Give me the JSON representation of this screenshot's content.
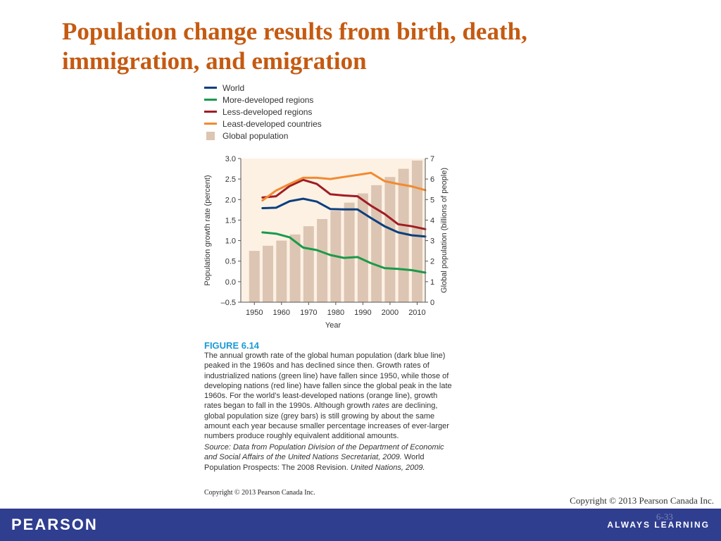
{
  "slide": {
    "title": "Population change results from birth, death, immigration, and emigration",
    "slide_number": "6-33",
    "copyright_right": "Copyright © 2013 Pearson Canada Inc.",
    "copyright_figure": "Copyright © 2013 Pearson Canada Inc."
  },
  "footer": {
    "logo": "PEARSON",
    "tagline": "ALWAYS LEARNING",
    "background_color": "#2f3e8f"
  },
  "legend": {
    "items": [
      {
        "label": "World",
        "color": "#0c3f7e",
        "kind": "line"
      },
      {
        "label": "More-developed regions",
        "color": "#1a9a4a",
        "kind": "line"
      },
      {
        "label": "Less-developed regions",
        "color": "#a01c24",
        "kind": "line"
      },
      {
        "label": "Least-developed countries",
        "color": "#f28a30",
        "kind": "line"
      },
      {
        "label": "Global population",
        "color": "#dcc5b2",
        "kind": "box"
      }
    ]
  },
  "figure": {
    "label": "FIGURE 6.14",
    "caption_pre": "The annual growth rate of the global human population (dark blue line) peaked in the 1960s and has declined since then. Growth rates of industrialized nations (green line) have fallen since 1950, while those of developing nations (red line) have fallen since the global peak in the late 1960s. For the world’s least-developed nations (orange line), growth rates began to fall in the 1990s. Although growth ",
    "caption_em": "rates",
    "caption_post": " are declining, global population size (grey bars) is still growing by about the same amount each year because smaller percentage increases of ever-larger numbers produce roughly equivalent additional amounts.",
    "source_italic": "Source: Data from Population Division of the Department of Economic and Social Affairs of the United Nations Secretariat, 2009.",
    "source_plain": " World Population Prospects: The 2008 Revision.",
    "source_italic2": " United Nations, 2009."
  },
  "chart_data": {
    "type": "line",
    "title": "",
    "xlabel": "Year",
    "ylabel": "Population growth rate (percent)",
    "y2label": "Global population (billions of people)",
    "xlim": [
      1945,
      2013
    ],
    "ylim": [
      -0.5,
      3.0
    ],
    "y2lim": [
      0,
      7
    ],
    "x_ticks": [
      1950,
      1960,
      1970,
      1980,
      1990,
      2000,
      2010
    ],
    "y_ticks": [
      "3.0",
      "2.5",
      "2.0",
      "1.5",
      "1.0",
      "0.5",
      "0.0",
      "–0.5"
    ],
    "y_tick_values": [
      3.0,
      2.5,
      2.0,
      1.5,
      1.0,
      0.5,
      0.0,
      -0.5
    ],
    "y2_ticks": [
      7,
      6,
      5,
      4,
      3,
      2,
      1,
      0
    ],
    "plot_background": "#fdf1e4",
    "bars": {
      "name": "Global population",
      "color": "#dcc5b2",
      "x": [
        1950,
        1955,
        1960,
        1965,
        1970,
        1975,
        1980,
        1985,
        1990,
        1995,
        2000,
        2005,
        2010
      ],
      "values": [
        2.5,
        2.75,
        3.0,
        3.3,
        3.7,
        4.05,
        4.45,
        4.85,
        5.3,
        5.7,
        6.1,
        6.5,
        6.9
      ]
    },
    "series": [
      {
        "name": "World",
        "color": "#0c3f7e",
        "x": [
          1953,
          1958,
          1963,
          1968,
          1973,
          1978,
          1983,
          1988,
          1993,
          1998,
          2003,
          2008,
          2013
        ],
        "values": [
          1.79,
          1.8,
          1.96,
          2.02,
          1.95,
          1.77,
          1.76,
          1.76,
          1.55,
          1.35,
          1.2,
          1.13,
          1.1
        ]
      },
      {
        "name": "More-developed regions",
        "color": "#1a9a4a",
        "x": [
          1953,
          1958,
          1963,
          1968,
          1973,
          1978,
          1983,
          1988,
          1993,
          1998,
          2003,
          2008,
          2013
        ],
        "values": [
          1.2,
          1.17,
          1.08,
          0.83,
          0.77,
          0.65,
          0.58,
          0.6,
          0.45,
          0.33,
          0.31,
          0.28,
          0.22
        ]
      },
      {
        "name": "Less-developed regions",
        "color": "#a01c24",
        "x": [
          1953,
          1958,
          1963,
          1968,
          1973,
          1978,
          1983,
          1988,
          1993,
          1998,
          2003,
          2008,
          2013
        ],
        "values": [
          2.05,
          2.08,
          2.33,
          2.48,
          2.38,
          2.13,
          2.1,
          2.08,
          1.85,
          1.65,
          1.4,
          1.35,
          1.28
        ]
      },
      {
        "name": "Least-developed countries",
        "color": "#f28a30",
        "x": [
          1953,
          1958,
          1963,
          1968,
          1973,
          1978,
          1983,
          1988,
          1993,
          1998,
          2003,
          2008,
          2013
        ],
        "values": [
          1.98,
          2.22,
          2.38,
          2.53,
          2.53,
          2.5,
          2.55,
          2.6,
          2.65,
          2.45,
          2.38,
          2.32,
          2.23
        ]
      }
    ],
    "grid": false,
    "legend_position": "top-left"
  }
}
